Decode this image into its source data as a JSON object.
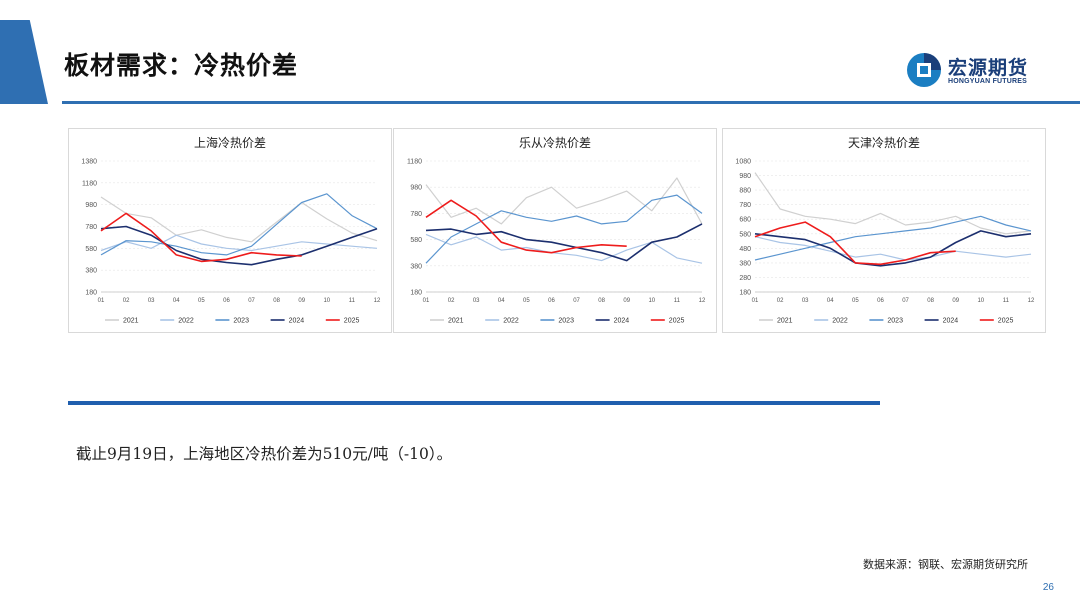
{
  "header": {
    "title": "板材需求：冷热价差",
    "logo_cn": "宏源期货",
    "logo_en": "HONGYUAN FUTURES"
  },
  "colors": {
    "accent": "#2f6fb2",
    "2021": "#d0d0d0",
    "2022": "#a9c4e6",
    "2023": "#5b95cf",
    "2024": "#1c2f6e",
    "2025": "#ee1c1c"
  },
  "chart_data": [
    {
      "type": "line",
      "title": "上海冷热价差",
      "ylim": [
        180,
        1380
      ],
      "yticks": [
        180,
        380,
        580,
        780,
        980,
        1180,
        1380
      ],
      "months": [
        "01",
        "02",
        "03",
        "04",
        "05",
        "06",
        "07",
        "08",
        "09",
        "10",
        "11",
        "12"
      ],
      "grid": true,
      "legend": "bottom",
      "series": [
        {
          "name": "2021",
          "values": [
            1050,
            900,
            860,
            700,
            750,
            680,
            640,
            820,
            1000,
            850,
            720,
            650
          ]
        },
        {
          "name": "2022",
          "values": [
            560,
            640,
            580,
            700,
            620,
            580,
            560,
            600,
            640,
            620,
            600,
            580
          ]
        },
        {
          "name": "2023",
          "values": [
            520,
            650,
            640,
            600,
            540,
            520,
            600,
            800,
            1000,
            1080,
            880,
            760
          ]
        },
        {
          "name": "2024",
          "values": [
            760,
            780,
            700,
            560,
            480,
            450,
            430,
            480,
            520,
            600,
            680,
            760
          ]
        },
        {
          "name": "2025",
          "values": [
            740,
            900,
            740,
            520,
            460,
            480,
            540,
            520,
            510
          ]
        }
      ]
    },
    {
      "type": "line",
      "title": "乐从冷热价差",
      "ylim": [
        180,
        1180
      ],
      "yticks": [
        180,
        380,
        580,
        780,
        980,
        1180
      ],
      "months": [
        "01",
        "02",
        "03",
        "04",
        "05",
        "06",
        "07",
        "08",
        "09",
        "10",
        "11",
        "12"
      ],
      "grid": true,
      "legend": "bottom",
      "series": [
        {
          "name": "2021",
          "values": [
            1000,
            750,
            820,
            700,
            900,
            980,
            820,
            880,
            950,
            800,
            1050,
            700
          ]
        },
        {
          "name": "2022",
          "values": [
            620,
            540,
            600,
            500,
            520,
            480,
            460,
            420,
            500,
            560,
            440,
            400
          ]
        },
        {
          "name": "2023",
          "values": [
            400,
            600,
            700,
            800,
            750,
            720,
            760,
            700,
            720,
            880,
            920,
            780
          ]
        },
        {
          "name": "2024",
          "values": [
            650,
            660,
            620,
            640,
            580,
            560,
            520,
            480,
            420,
            560,
            600,
            700
          ]
        },
        {
          "name": "2025",
          "values": [
            750,
            880,
            760,
            560,
            500,
            480,
            520,
            540,
            530
          ]
        }
      ]
    },
    {
      "type": "line",
      "title": "天津冷热价差",
      "ylim": [
        180,
        1080
      ],
      "yticks": [
        180,
        280,
        380,
        480,
        580,
        680,
        780,
        880,
        980,
        1080
      ],
      "months": [
        "01",
        "02",
        "03",
        "04",
        "05",
        "06",
        "07",
        "08",
        "09",
        "10",
        "11",
        "12"
      ],
      "grid": true,
      "legend": "bottom",
      "series": [
        {
          "name": "2021",
          "values": [
            1000,
            750,
            700,
            680,
            650,
            720,
            640,
            660,
            700,
            620,
            580,
            600
          ]
        },
        {
          "name": "2022",
          "values": [
            560,
            520,
            500,
            460,
            420,
            440,
            400,
            420,
            460,
            440,
            420,
            440
          ]
        },
        {
          "name": "2023",
          "values": [
            400,
            440,
            480,
            520,
            560,
            580,
            600,
            620,
            660,
            700,
            640,
            600
          ]
        },
        {
          "name": "2024",
          "values": [
            580,
            560,
            540,
            480,
            380,
            360,
            380,
            420,
            520,
            600,
            560,
            580
          ]
        },
        {
          "name": "2025",
          "values": [
            560,
            620,
            660,
            560,
            380,
            370,
            400,
            450,
            460
          ]
        }
      ]
    }
  ],
  "commentary": "截止9月19日，上海地区冷热价差为510元/吨（-10）。",
  "footer": {
    "source": "数据来源：钢联、宏源期货研究所",
    "page_number": "26"
  }
}
